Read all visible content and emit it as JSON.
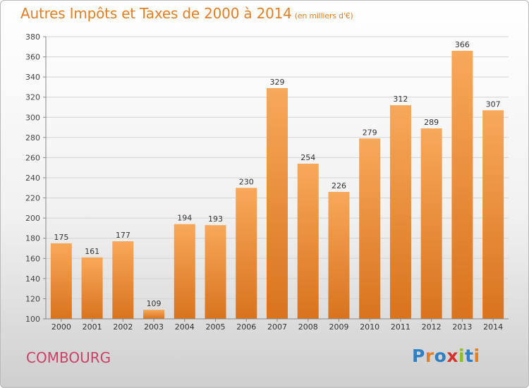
{
  "title": "Autres Impôts et Taxes de 2000 à 2014",
  "title_unit": "(en milliers d'€)",
  "city": "COMBOURG",
  "logo_text": "Proxiti",
  "colors": {
    "title": "#e07f26",
    "city": "#cc3f66",
    "bar_top": "#f8a85a",
    "bar_bottom": "#d8731e",
    "logo": [
      "#2e7fc3",
      "#e07f26",
      "#2e7fc3",
      "#d6312b",
      "#8cbf26",
      "#2e7fc3",
      "#e07f26"
    ]
  },
  "chart_data": {
    "type": "bar",
    "categories": [
      "2000",
      "2001",
      "2002",
      "2003",
      "2004",
      "2005",
      "2006",
      "2007",
      "2008",
      "2009",
      "2010",
      "2011",
      "2012",
      "2013",
      "2014"
    ],
    "values": [
      175,
      161,
      177,
      109,
      194,
      193,
      230,
      329,
      254,
      226,
      279,
      312,
      289,
      366,
      307
    ],
    "title": "Autres Impôts et Taxes de 2000 à 2014",
    "ylabel": "",
    "xlabel": "",
    "ylim": [
      100,
      380
    ],
    "yticks": [
      100,
      120,
      140,
      160,
      180,
      200,
      220,
      240,
      260,
      280,
      300,
      320,
      340,
      360,
      380
    ],
    "grid": true,
    "legend": "none"
  }
}
